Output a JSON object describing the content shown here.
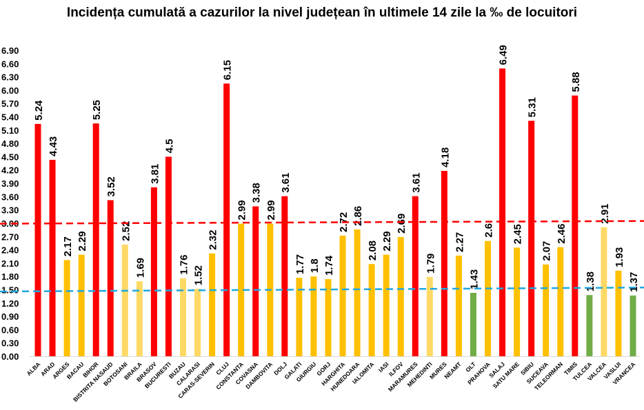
{
  "chart_data": {
    "type": "bar",
    "title": "Incidența cumulată a cazurilor la nivel județean în ultimele 14 zile la ‰ de locuitori",
    "xlabel": "",
    "ylabel": "",
    "ylim": [
      0,
      6.9
    ],
    "yticks": [
      "0.00",
      "0.30",
      "0.60",
      "0.90",
      "1.20",
      "1.50",
      "1.80",
      "2.10",
      "2.40",
      "2.70",
      "3.00",
      "3.30",
      "3.60",
      "3.90",
      "4.20",
      "4.50",
      "4.80",
      "5.10",
      "5.40",
      "5.70",
      "6.00",
      "6.30",
      "6.60",
      "6.90"
    ],
    "grid": false,
    "categories": [
      "ALBA",
      "ARAD",
      "ARGES",
      "BACAU",
      "BIHOR",
      "BISTRITA NASAUD",
      "BOTOSANI",
      "BRAILA",
      "BRASOV",
      "BUCURESTI",
      "BUZAU",
      "CALARASI",
      "CARAS-SEVERIN",
      "CLUJ",
      "CONSTANTA",
      "COVASNA",
      "DAMBOVITA",
      "DOLJ",
      "GALATI",
      "GIURGIU",
      "GORJ",
      "HARGHITA",
      "HUNEDOARA",
      "IALOMITA",
      "IASI",
      "ILFOV",
      "MARAMURES",
      "MEHEDINTI",
      "MURES",
      "NEAMT",
      "OLT",
      "PRAHOVA",
      "SALAJ",
      "SATU MARE",
      "SIBIU",
      "SUCEAVA",
      "TELEORMAN",
      "TIMIS",
      "TULCEA",
      "VALCEA",
      "VASLUI",
      "VRANCEA"
    ],
    "values": [
      5.24,
      4.43,
      2.17,
      2.29,
      5.25,
      3.52,
      2.52,
      1.69,
      3.81,
      4.5,
      1.76,
      1.52,
      2.32,
      6.15,
      2.99,
      3.38,
      2.99,
      3.61,
      1.77,
      1.8,
      1.74,
      2.72,
      2.86,
      2.08,
      2.29,
      2.69,
      3.61,
      1.79,
      4.18,
      2.27,
      1.43,
      2.6,
      6.49,
      2.45,
      5.31,
      2.07,
      2.46,
      5.88,
      1.38,
      2.91,
      1.93,
      1.37
    ],
    "data_labels": [
      "5.24",
      "4.43",
      "2.17",
      "2.29",
      "5.25",
      "3.52",
      "2.52",
      "1.69",
      "3.81",
      "4.5",
      "1.76",
      "1.52",
      "2.32",
      "6.15",
      "2.99",
      "3.38",
      "2.99",
      "3.61",
      "1.77",
      "1.8",
      "1.74",
      "2.72",
      "2.86",
      "2.08",
      "2.29",
      "2.69",
      "3.61",
      "1.79",
      "4.18",
      "2.27",
      "1.43",
      "2.6",
      "6.49",
      "2.45",
      "5.31",
      "2.07",
      "2.46",
      "5.88",
      "1.38",
      "2.91",
      "1.93",
      "1.37"
    ],
    "bar_colors": [
      "r",
      "r",
      "o",
      "o",
      "r",
      "r",
      "l",
      "l",
      "r",
      "r",
      "l",
      "l",
      "o",
      "r",
      "o",
      "r",
      "o",
      "r",
      "o",
      "o",
      "o",
      "o",
      "o",
      "o",
      "o",
      "o",
      "r",
      "l",
      "r",
      "o",
      "g",
      "o",
      "r",
      "o",
      "r",
      "o",
      "o",
      "r",
      "g",
      "l",
      "o",
      "g"
    ],
    "color_map": {
      "r": "#FF0000",
      "o": "#FFC000",
      "l": "#FFD966",
      "g": "#70AD47"
    },
    "reference_lines": [
      {
        "color": "#FF0000",
        "start": 2.99,
        "end": 3.05,
        "style": "dashed"
      },
      {
        "color": "#1FA7E1",
        "start": 1.46,
        "end": 1.55,
        "style": "dashed"
      }
    ]
  }
}
